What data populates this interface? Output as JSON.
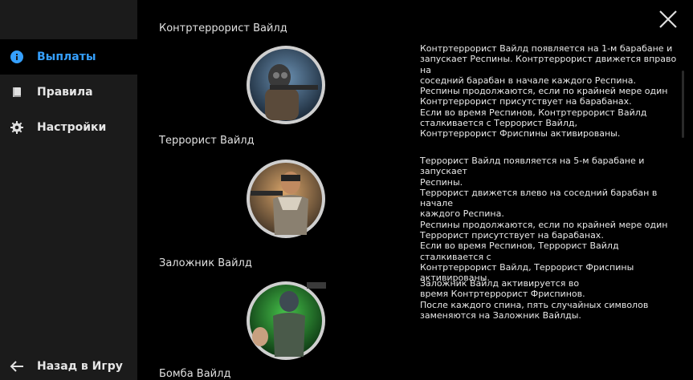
{
  "nav": {
    "items": [
      {
        "label": "Выплаты",
        "icon": "info-icon",
        "active": true
      },
      {
        "label": "Правила",
        "icon": "book-icon",
        "active": false
      },
      {
        "label": "Настройки",
        "icon": "gear-icon",
        "active": false
      }
    ],
    "back_label": "Назад в Игру"
  },
  "sections": [
    {
      "title": "Контртеррорист Вайлд",
      "image": "counter-terrorist-wild-symbol",
      "description": "Контртеррорист Вайлд появляется на 1-м барабане и\nзапускает Респины. Контртеррорист движется вправо на\nсоседний барабан в начале каждого Респина.\nРеспины продолжаются, если по крайней мере один\nКонтртеррорист присутствует на барабанах.\nЕсли во время Респинов, Контртеррорист Вайлд\nсталкивается с Террорист Вайлд,\nКонтртеррорист Фриспины активированы."
    },
    {
      "title": "Террорист Вайлд",
      "image": "terrorist-wild-symbol",
      "description": "Террорист Вайлд появляется на 5-м барабане и запускает\nРеспины.\nТеррорист  движется влево на соседний барабан в начале\nкаждого Респина.\nРеспины продолжаются, если по крайней мере один\nТеррорист присутствует на барабанах.\nЕсли во время Респинов, Террорист Вайлд сталкивается с\nКонтртеррорист Вайлд, Террорист Фриспины\nактивированы."
    },
    {
      "title": "Заложник Вайлд",
      "image": "hostage-wild-symbol",
      "description": "Заложник Вайлд активируется во\nвремя Контртеррорист Фриспинов.\nПосле каждого спина, пять случайных символов\nзаменяются на Заложник Вайлды."
    },
    {
      "title": "Бомба Вайлд"
    }
  ],
  "colors": {
    "accent": "#35a0ff",
    "sidebar_bg": "#1b1b1b",
    "main_bg": "#000000"
  }
}
